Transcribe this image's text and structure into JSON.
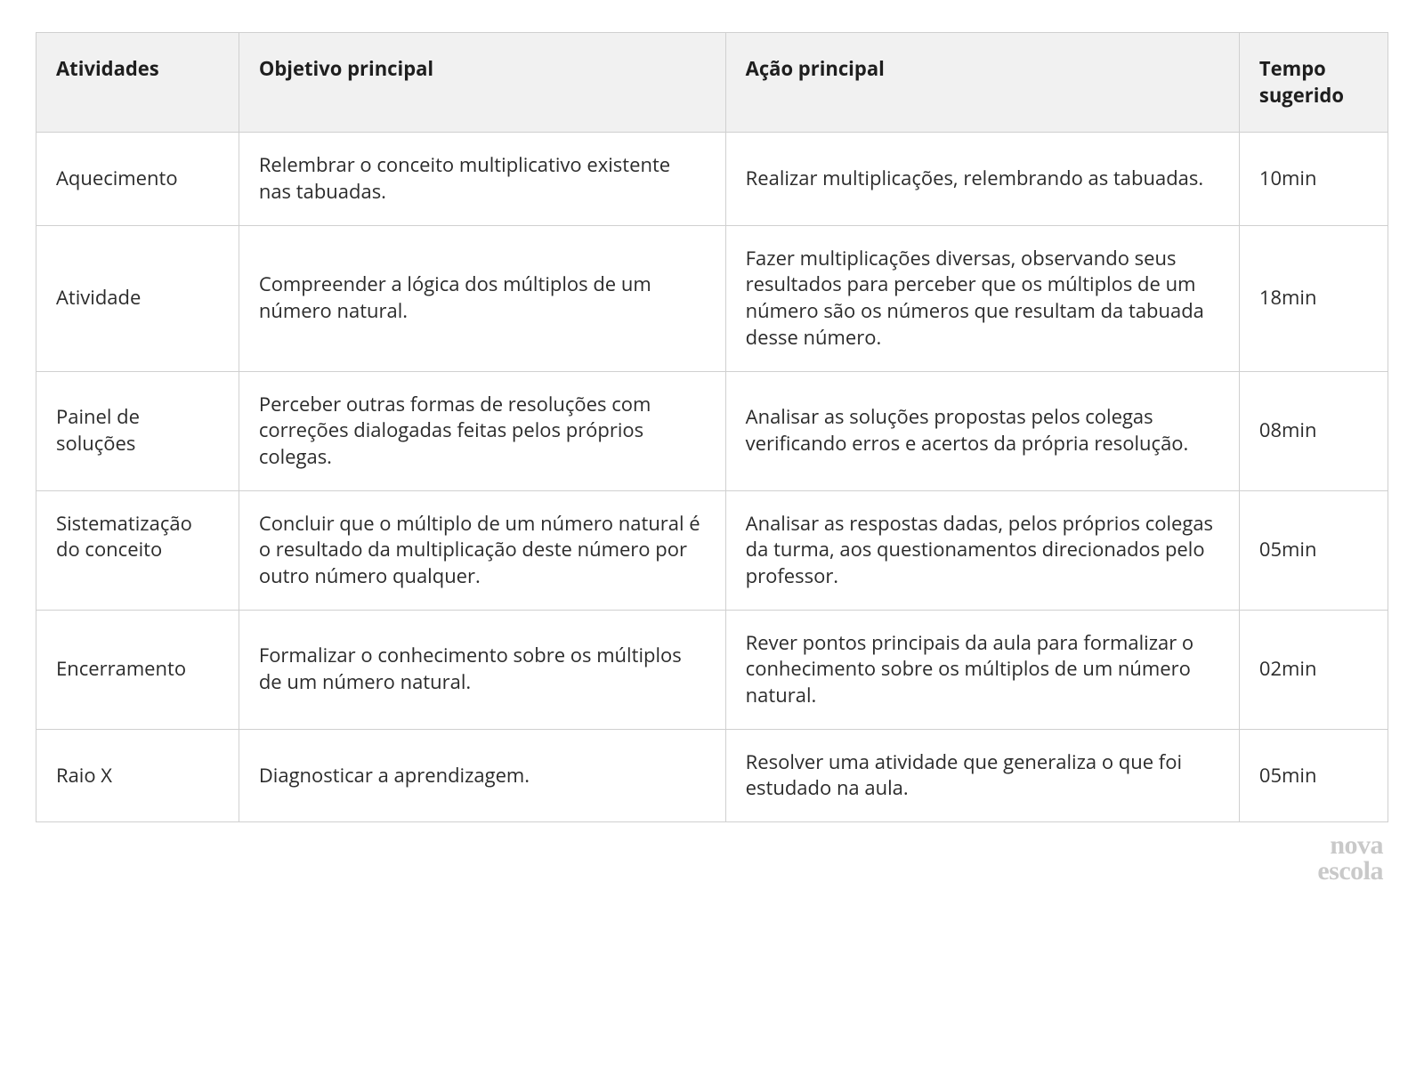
{
  "columns": [
    {
      "key": "atividades",
      "label": "Atividades"
    },
    {
      "key": "objetivo",
      "label": "Objetivo principal"
    },
    {
      "key": "acao",
      "label": "Ação principal"
    },
    {
      "key": "tempo",
      "label": "Tempo sugerido"
    }
  ],
  "rows": [
    {
      "atividades": "Aquecimento",
      "objetivo": "Relembrar o conceito multiplicativo existente nas tabuadas.",
      "acao": "Realizar multiplicações, relembrando as tabuadas.",
      "tempo": "10min"
    },
    {
      "atividades": "Atividade",
      "objetivo": "Compreender a lógica dos múltiplos de um número natural.",
      "acao": "Fazer multiplicações diversas, observando seus resultados para perceber que os múltiplos de um número são os números que resultam da tabuada desse número.",
      "tempo": "18min"
    },
    {
      "atividades": "Painel de soluções",
      "objetivo": "Perceber outras formas de resoluções com correções dialogadas feitas pelos próprios colegas.",
      "acao": "Analisar as soluções propostas pelos colegas verificando erros e acertos da própria resolução.",
      "tempo": "08min"
    },
    {
      "atividades": "Sistematização do conceito",
      "objetivo": "Concluir que o múltiplo de um número natural é o resultado da multiplicação deste número por outro número qualquer.",
      "acao": "Analisar as respostas dadas, pelos próprios colegas da turma, aos questionamentos direcionados pelo professor.",
      "tempo": "05min"
    },
    {
      "atividades": "Encerramento",
      "objetivo": "Formalizar o conhecimento sobre os múltiplos de um número natural.",
      "acao": "Rever pontos principais da aula para formalizar o conhecimento sobre os múltiplos de um número natural.",
      "tempo": "02min"
    },
    {
      "atividades": "Raio X",
      "objetivo": "Diagnosticar a aprendizagem.",
      "acao": "Resolver uma atividade que generaliza o que foi estudado na aula.",
      "tempo": "05min"
    }
  ],
  "styling": {
    "border_color": "#d0d0d0",
    "header_bg": "#f1f1f1",
    "body_bg": "#ffffff",
    "text_color": "#2b2b2b",
    "header_text_color": "#1e1e1e",
    "font_size_pt": 16,
    "line_height": 1.35,
    "col_widths_pct": {
      "atividades": 15,
      "objetivo": 36,
      "acao": 38,
      "tempo": 11
    }
  },
  "brand": {
    "line1": "nova",
    "line2": "escola",
    "color": "#c9c9c9"
  }
}
